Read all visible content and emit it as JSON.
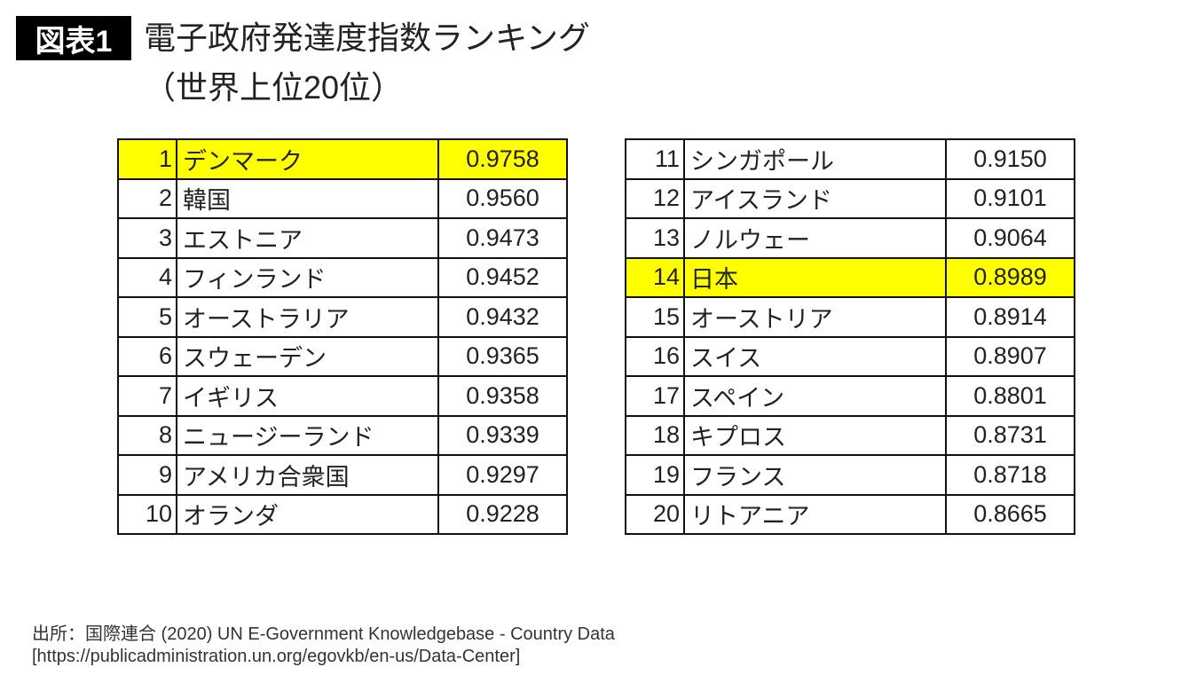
{
  "header": {
    "badge": "図表1",
    "title": "電子政府発達度指数ランキング",
    "subtitle": "（世界上位20位）"
  },
  "highlight_color": "#ffff00",
  "tables": {
    "left": [
      {
        "rank": "1",
        "country": "デンマーク",
        "value": "0.9758",
        "highlight": true
      },
      {
        "rank": "2",
        "country": "韓国",
        "value": "0.9560"
      },
      {
        "rank": "3",
        "country": "エストニア",
        "value": "0.9473"
      },
      {
        "rank": "4",
        "country": "フィンランド",
        "value": "0.9452"
      },
      {
        "rank": "5",
        "country": "オーストラリア",
        "value": "0.9432"
      },
      {
        "rank": "6",
        "country": "スウェーデン",
        "value": "0.9365"
      },
      {
        "rank": "7",
        "country": "イギリス",
        "value": "0.9358"
      },
      {
        "rank": "8",
        "country": "ニュージーランド",
        "value": "0.9339"
      },
      {
        "rank": "9",
        "country": "アメリカ合衆国",
        "value": "0.9297"
      },
      {
        "rank": "10",
        "country": "オランダ",
        "value": "0.9228"
      }
    ],
    "right": [
      {
        "rank": "11",
        "country": "シンガポール",
        "value": "0.9150"
      },
      {
        "rank": "12",
        "country": "アイスランド",
        "value": "0.9101"
      },
      {
        "rank": "13",
        "country": "ノルウェー",
        "value": "0.9064"
      },
      {
        "rank": "14",
        "country": "日本",
        "value": "0.8989",
        "highlight": true
      },
      {
        "rank": "15",
        "country": "オーストリア",
        "value": "0.8914"
      },
      {
        "rank": "16",
        "country": "スイス",
        "value": "0.8907"
      },
      {
        "rank": "17",
        "country": "スペイン",
        "value": "0.8801"
      },
      {
        "rank": "18",
        "country": "キプロス",
        "value": "0.8731"
      },
      {
        "rank": "19",
        "country": "フランス",
        "value": "0.8718"
      },
      {
        "rank": "20",
        "country": "リトアニア",
        "value": "0.8665"
      }
    ]
  },
  "source": {
    "line1": "出所：国際連合 (2020) UN E-Government Knowledgebase - Country Data",
    "line2": "[https://publicadministration.un.org/egovkb/en-us/Data-Center]"
  }
}
